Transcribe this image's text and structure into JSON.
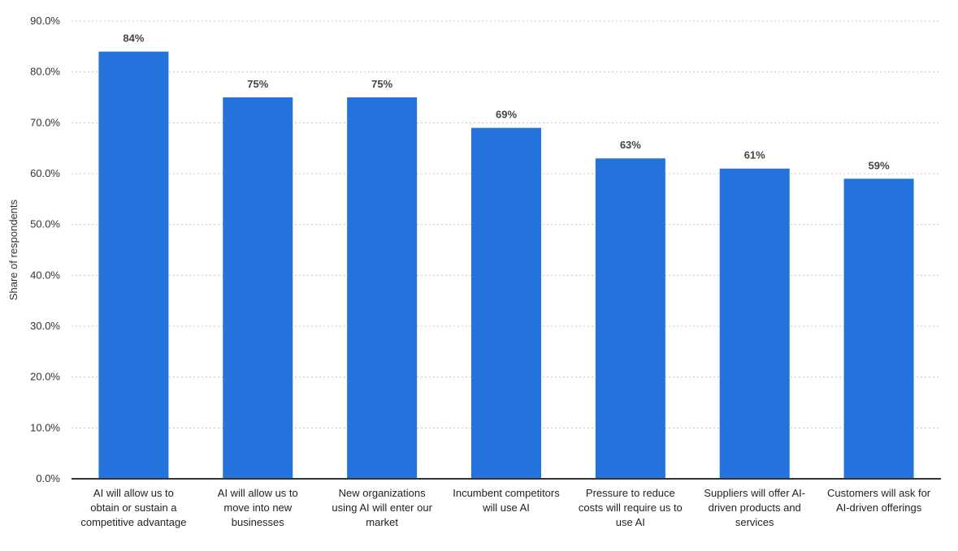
{
  "chart_data": {
    "type": "bar",
    "title": "",
    "xlabel": "",
    "ylabel": "Share of respondents",
    "ylim": [
      0,
      90
    ],
    "yticks": [
      "0.0%",
      "10.0%",
      "20.0%",
      "30.0%",
      "40.0%",
      "50.0%",
      "60.0%",
      "70.0%",
      "80.0%",
      "90.0%"
    ],
    "grid": true,
    "bar_color": "#2473dc",
    "categories": [
      "AI will allow us to obtain or sustain a competitive advantage",
      "AI will allow us to move into new businesses",
      "New organizations using AI will enter our market",
      "Incumbent competitors will use AI",
      "Pressure to reduce costs will require us to use AI",
      "Suppliers will offer AI-driven products and services",
      "Customers will ask for AI-driven offerings"
    ],
    "category_label_lines": [
      [
        "AI will allow us to",
        "obtain or sustain a",
        "competitive advantage"
      ],
      [
        "AI will allow us to",
        "move into new",
        "businesses"
      ],
      [
        "New organizations",
        "using AI will enter our",
        "market"
      ],
      [
        "Incumbent competitors",
        "will use AI"
      ],
      [
        "Pressure to reduce",
        "costs will require us to",
        "use AI"
      ],
      [
        "Suppliers will offer AI-",
        "driven products and",
        "services"
      ],
      [
        "Customers will ask for",
        "AI-driven offerings"
      ]
    ],
    "values": [
      84,
      75,
      75,
      69,
      63,
      61,
      59
    ],
    "data_labels": [
      "84%",
      "75%",
      "75%",
      "69%",
      "63%",
      "61%",
      "59%"
    ]
  }
}
